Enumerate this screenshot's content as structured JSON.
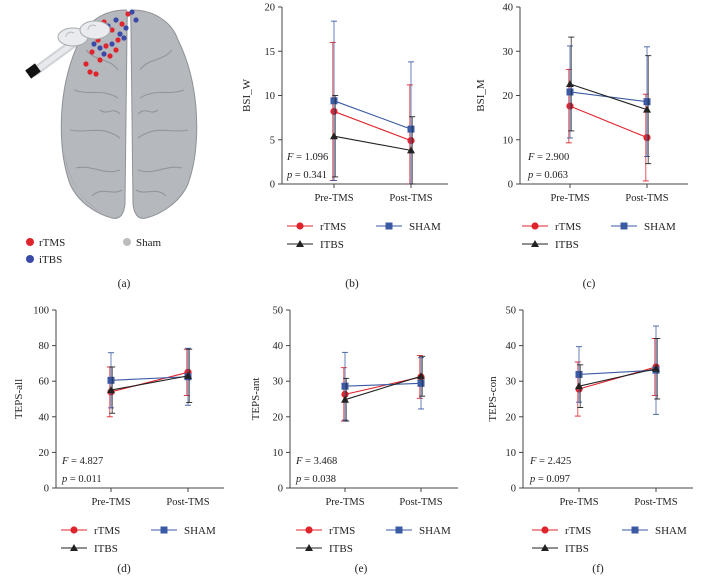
{
  "panel_a": {
    "caption": "(a)",
    "legend": [
      {
        "label": "rTMS",
        "color": "#e0242c"
      },
      {
        "label": "iTBS",
        "color": "#3b4aa8"
      },
      {
        "label": "Sham",
        "color": "#bdbdbd"
      }
    ]
  },
  "colors": {
    "rTMS": "#e0242c",
    "SHAM": "#3b5aa6",
    "ITBS": "#222222"
  },
  "chart_data": [
    {
      "id": "b",
      "type": "line",
      "caption": "(b)",
      "ylabel": "BSI_W",
      "ylim": [
        0,
        20
      ],
      "yticks": [
        0,
        5,
        10,
        15,
        20
      ],
      "categories": [
        "Pre-TMS",
        "Post-TMS"
      ],
      "stat_F": "1.096",
      "stat_p": "0.341",
      "series": [
        {
          "name": "rTMS",
          "values": [
            8.2,
            4.9
          ],
          "err": [
            7.8,
            6.3
          ]
        },
        {
          "name": "SHAM",
          "values": [
            9.4,
            6.2
          ],
          "err": [
            9.0,
            7.6
          ]
        },
        {
          "name": "ITBS",
          "values": [
            5.4,
            3.8
          ],
          "err": [
            4.6,
            3.8
          ]
        }
      ]
    },
    {
      "id": "c",
      "type": "line",
      "caption": "(c)",
      "ylabel": "BSI_M",
      "ylim": [
        0,
        40
      ],
      "yticks": [
        0,
        10,
        20,
        30,
        40
      ],
      "categories": [
        "Pre-TMS",
        "Post-TMS"
      ],
      "stat_F": "2.900",
      "stat_p": "0.063",
      "series": [
        {
          "name": "rTMS",
          "values": [
            17.6,
            10.5
          ],
          "err": [
            8.3,
            9.8
          ]
        },
        {
          "name": "SHAM",
          "values": [
            20.8,
            18.6
          ],
          "err": [
            10.4,
            12.4
          ]
        },
        {
          "name": "ITBS",
          "values": [
            22.6,
            16.8
          ],
          "err": [
            10.6,
            12.2
          ]
        }
      ]
    },
    {
      "id": "d",
      "type": "line",
      "caption": "(d)",
      "ylabel": "TEPS-all",
      "ylim": [
        0,
        100
      ],
      "yticks": [
        0,
        20,
        40,
        60,
        80,
        100
      ],
      "categories": [
        "Pre-TMS",
        "Post-TMS"
      ],
      "stat_F": "4.827",
      "stat_p": "0.011",
      "series": [
        {
          "name": "rTMS",
          "values": [
            54,
            65
          ],
          "err": [
            14,
            13
          ]
        },
        {
          "name": "SHAM",
          "values": [
            60.5,
            62.5
          ],
          "err": [
            15.5,
            16
          ]
        },
        {
          "name": "ITBS",
          "values": [
            55,
            63
          ],
          "err": [
            13,
            15
          ]
        }
      ]
    },
    {
      "id": "e",
      "type": "line",
      "caption": "(e)",
      "ylabel": "TEPS-ant",
      "ylim": [
        0,
        50
      ],
      "yticks": [
        0,
        10,
        20,
        30,
        40,
        50
      ],
      "categories": [
        "Pre-TMS",
        "Post-TMS"
      ],
      "stat_F": "3.468",
      "stat_p": "0.038",
      "series": [
        {
          "name": "rTMS",
          "values": [
            26.3,
            31.2
          ],
          "err": [
            7.5,
            6
          ]
        },
        {
          "name": "SHAM",
          "values": [
            28.6,
            29.4
          ],
          "err": [
            9.5,
            7.2
          ]
        },
        {
          "name": "ITBS",
          "values": [
            24.8,
            31.4
          ],
          "err": [
            6,
            5.6
          ]
        }
      ]
    },
    {
      "id": "f",
      "type": "line",
      "caption": "(f)",
      "ylabel": "TEPS-con",
      "ylim": [
        0,
        50
      ],
      "yticks": [
        0,
        10,
        20,
        30,
        40,
        50
      ],
      "categories": [
        "Pre-TMS",
        "Post-TMS"
      ],
      "stat_F": "2.425",
      "stat_p": "0.097",
      "series": [
        {
          "name": "rTMS",
          "values": [
            27.8,
            34.0
          ],
          "err": [
            7.6,
            8
          ]
        },
        {
          "name": "SHAM",
          "values": [
            31.9,
            33.1
          ],
          "err": [
            7.8,
            12.4
          ]
        },
        {
          "name": "ITBS",
          "values": [
            28.6,
            33.5
          ],
          "err": [
            6,
            8.5
          ]
        }
      ]
    }
  ]
}
